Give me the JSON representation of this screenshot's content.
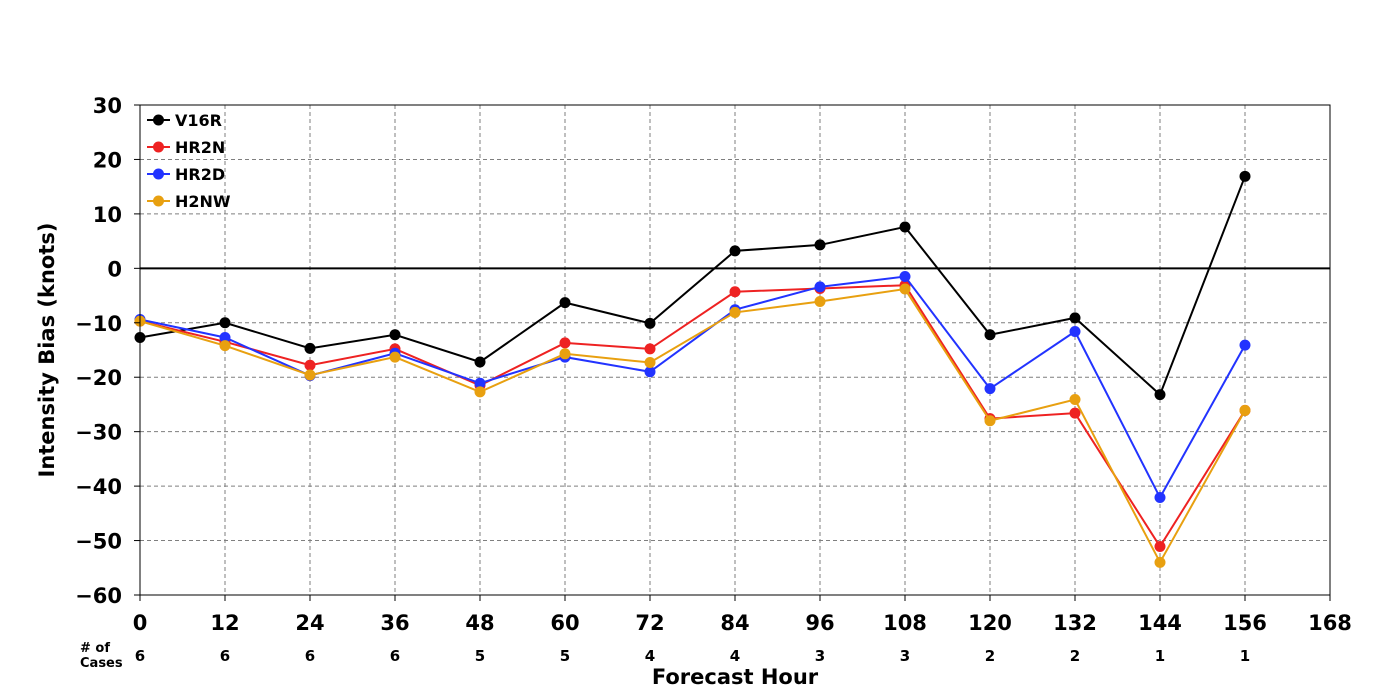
{
  "chart_data": {
    "type": "line",
    "xlabel": "Forecast Hour",
    "ylabel": "Intensity Bias (knots)",
    "xlim": [
      0,
      168
    ],
    "ylim": [
      -60,
      30
    ],
    "x_ticks": [
      0,
      12,
      24,
      36,
      48,
      60,
      72,
      84,
      96,
      108,
      120,
      132,
      144,
      156,
      168
    ],
    "y_ticks": [
      30,
      20,
      10,
      0,
      -10,
      -20,
      -30,
      -40,
      -50,
      -60
    ],
    "y_tick_labels": [
      "30",
      "20",
      "10",
      "0",
      "−10",
      "−20",
      "−30",
      "−40",
      "−50",
      "−60"
    ],
    "grid": true,
    "zero_line": true,
    "legend_position": "top-left",
    "x": [
      0,
      12,
      24,
      36,
      48,
      60,
      72,
      84,
      96,
      108,
      120,
      132,
      144,
      156
    ],
    "cases_label": "# of\nCases",
    "cases": [
      6,
      6,
      6,
      6,
      5,
      5,
      4,
      4,
      3,
      3,
      2,
      2,
      1,
      1
    ],
    "series": [
      {
        "name": "V16R",
        "color": "#000000",
        "values": [
          -12.7,
          -10.0,
          -14.7,
          -12.2,
          -17.2,
          -6.3,
          -10.1,
          3.2,
          4.3,
          7.6,
          -12.2,
          -9.1,
          -23.2,
          16.9
        ]
      },
      {
        "name": "HR2N",
        "color": "#ee2222",
        "values": [
          -9.7,
          -13.5,
          -17.8,
          -14.8,
          -21.5,
          -13.7,
          -14.8,
          -4.3,
          -3.7,
          -3.1,
          -27.6,
          -26.6,
          -51.1,
          -26.1
        ]
      },
      {
        "name": "HR2D",
        "color": "#2233ff",
        "values": [
          -9.4,
          -12.7,
          -19.7,
          -15.6,
          -21.1,
          -16.3,
          -19.0,
          -7.6,
          -3.4,
          -1.5,
          -22.1,
          -11.6,
          -42.1,
          -14.1
        ]
      },
      {
        "name": "H2NW",
        "color": "#e8a010",
        "values": [
          -9.7,
          -14.2,
          -19.6,
          -16.3,
          -22.7,
          -15.7,
          -17.3,
          -8.1,
          -6.1,
          -3.8,
          -28.0,
          -24.1,
          -54.0,
          -26.1
        ]
      }
    ]
  }
}
